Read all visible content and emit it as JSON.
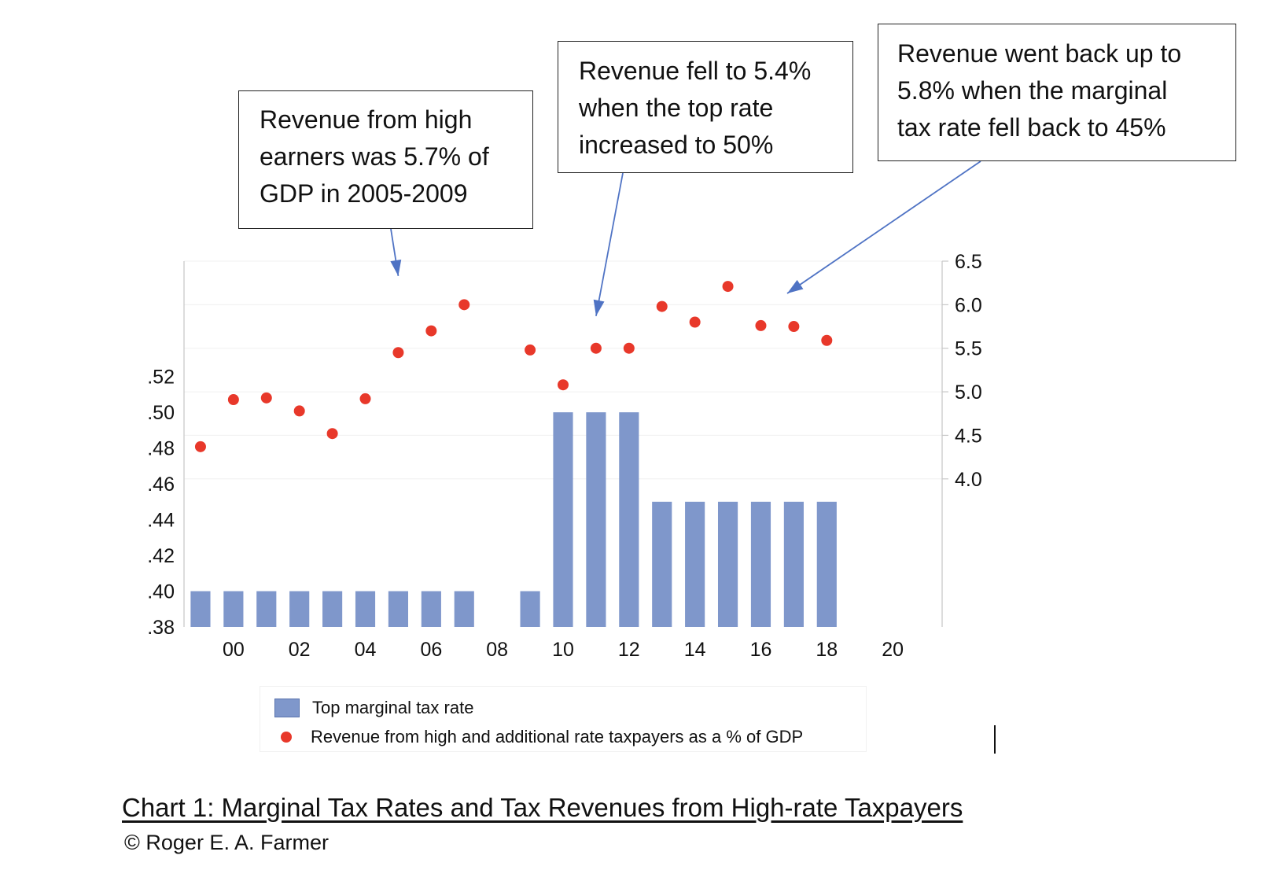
{
  "chart_data": {
    "type": "bar",
    "title": "Chart 1: Marginal Tax Rates and Tax Revenues from High-rate Taxpayers",
    "credit": "© Roger E. A. Farmer",
    "x_tick_labels": [
      "00",
      "02",
      "04",
      "06",
      "08",
      "10",
      "12",
      "14",
      "16",
      "18",
      "20"
    ],
    "x_tick_years": [
      2000,
      2002,
      2004,
      2006,
      2008,
      2010,
      2012,
      2014,
      2016,
      2018,
      2020
    ],
    "x_range": [
      1998.5,
      2021.5
    ],
    "left_axis": {
      "range": [
        0.38,
        0.5845
      ],
      "ticks": [
        0.38,
        0.4,
        0.42,
        0.44,
        0.46,
        0.48,
        0.5,
        0.52
      ],
      "tick_labels": [
        ".38",
        ".40",
        ".42",
        ".44",
        ".46",
        ".48",
        ".50",
        ".52"
      ]
    },
    "right_axis": {
      "range": [
        2.3,
        6.5
      ],
      "ticks": [
        4.0,
        4.5,
        5.0,
        5.5,
        6.0,
        6.5
      ],
      "tick_labels": [
        "4.0",
        "4.5",
        "5.0",
        "5.5",
        "6.0",
        "6.5"
      ]
    },
    "series": [
      {
        "name": "Top marginal tax rate",
        "type": "bar",
        "axis": "left",
        "color": "#7f97cb",
        "points": [
          {
            "year": 1999,
            "value": 0.4
          },
          {
            "year": 2000,
            "value": 0.4
          },
          {
            "year": 2001,
            "value": 0.4
          },
          {
            "year": 2002,
            "value": 0.4
          },
          {
            "year": 2003,
            "value": 0.4
          },
          {
            "year": 2004,
            "value": 0.4
          },
          {
            "year": 2005,
            "value": 0.4
          },
          {
            "year": 2006,
            "value": 0.4
          },
          {
            "year": 2007,
            "value": 0.4
          },
          {
            "year": 2009,
            "value": 0.4
          },
          {
            "year": 2010,
            "value": 0.5
          },
          {
            "year": 2011,
            "value": 0.5
          },
          {
            "year": 2012,
            "value": 0.5
          },
          {
            "year": 2013,
            "value": 0.45
          },
          {
            "year": 2014,
            "value": 0.45
          },
          {
            "year": 2015,
            "value": 0.45
          },
          {
            "year": 2016,
            "value": 0.45
          },
          {
            "year": 2017,
            "value": 0.45
          },
          {
            "year": 2018,
            "value": 0.45
          }
        ]
      },
      {
        "name": "Revenue from high and additional rate taxpayers as a % of GDP",
        "type": "scatter",
        "axis": "right",
        "color": "#e8382a",
        "points": [
          {
            "year": 1999,
            "value": 4.37
          },
          {
            "year": 2000,
            "value": 4.91
          },
          {
            "year": 2001,
            "value": 4.93
          },
          {
            "year": 2002,
            "value": 4.78
          },
          {
            "year": 2003,
            "value": 4.52
          },
          {
            "year": 2004,
            "value": 4.92
          },
          {
            "year": 2005,
            "value": 5.45
          },
          {
            "year": 2006,
            "value": 5.7
          },
          {
            "year": 2007,
            "value": 6.0
          },
          {
            "year": 2009,
            "value": 5.48
          },
          {
            "year": 2010,
            "value": 5.08
          },
          {
            "year": 2011,
            "value": 5.5
          },
          {
            "year": 2012,
            "value": 5.5
          },
          {
            "year": 2013,
            "value": 5.98
          },
          {
            "year": 2014,
            "value": 5.8
          },
          {
            "year": 2015,
            "value": 6.21
          },
          {
            "year": 2016,
            "value": 5.76
          },
          {
            "year": 2017,
            "value": 5.75
          },
          {
            "year": 2018,
            "value": 5.59
          }
        ]
      }
    ],
    "annotations": [
      {
        "lines": [
          "Revenue  from high",
          "earners was 5.7% of",
          "GDP in 2005-2009"
        ],
        "arrow_to": {
          "year": 2005,
          "value": 6.33
        }
      },
      {
        "lines": [
          "Revenue  fell to 5.4%",
          "when the top rate",
          "increased  to 50%"
        ],
        "arrow_to": {
          "year": 2011,
          "value": 5.87
        }
      },
      {
        "lines": [
          "Revenue  went back up to",
          "5.8% when the marginal",
          "tax rate fell back to 45%"
        ],
        "arrow_to": {
          "year": 2016.8,
          "value": 6.13
        }
      }
    ]
  }
}
